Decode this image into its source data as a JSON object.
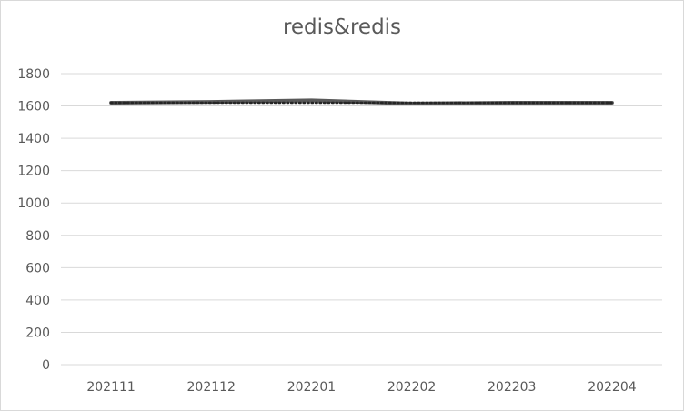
{
  "chart_data": {
    "type": "line",
    "title": "redis&redis",
    "categories": [
      "202111",
      "202112",
      "202201",
      "202202",
      "202203",
      "202204"
    ],
    "series": [
      {
        "values": [
          1620,
          1625,
          1635,
          1615,
          1620,
          1620
        ],
        "color": "#595959",
        "style": "solid"
      },
      {
        "values": [
          1620,
          1620,
          1620,
          1620,
          1620,
          1620
        ],
        "color": "#262626",
        "style": "dotted"
      }
    ],
    "ylim": [
      0,
      1800
    ],
    "yticks": [
      0,
      200,
      400,
      600,
      800,
      1000,
      1200,
      1400,
      1600,
      1800
    ],
    "grid": true,
    "legend": "none"
  }
}
